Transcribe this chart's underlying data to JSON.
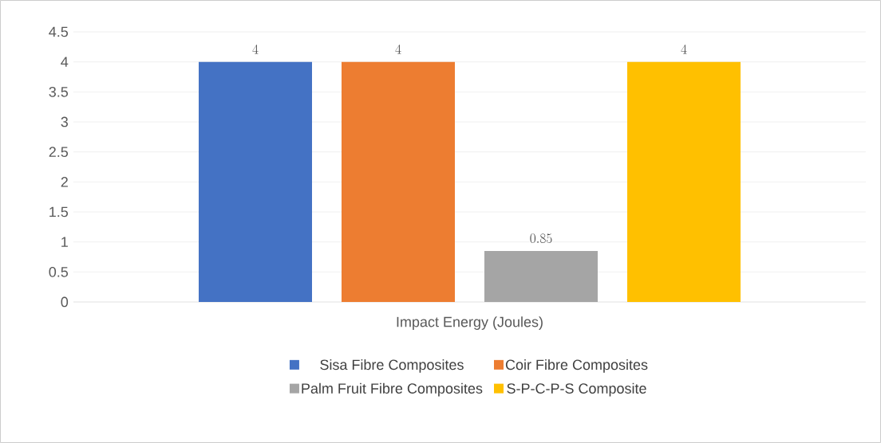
{
  "chart_data": {
    "type": "bar",
    "categories": [
      "Impact Energy (Joules)"
    ],
    "series": [
      {
        "name": "Sisa Fibre Composites",
        "color": "#4472c4",
        "values": [
          4
        ]
      },
      {
        "name": "Coir Fibre Composites",
        "color": "#ed7d31",
        "values": [
          4
        ]
      },
      {
        "name": "Palm Fruit Fibre Composites",
        "color": "#a5a5a5",
        "values": [
          0.85
        ]
      },
      {
        "name": "S-P-C-P-S Composite",
        "color": "#ffc000",
        "values": [
          4
        ]
      }
    ],
    "ylim": [
      0,
      4.5
    ],
    "yticks": [
      0,
      0.5,
      1,
      1.5,
      2,
      2.5,
      3,
      3.5,
      4,
      4.5
    ],
    "grid": "y",
    "legend": "bottom",
    "data_labels": true
  }
}
